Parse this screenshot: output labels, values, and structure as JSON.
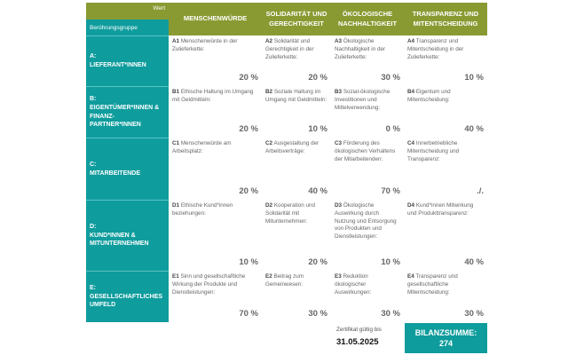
{
  "header": {
    "wert": "Wert",
    "group": "Berührungsgruppe",
    "columns": [
      "MENSCHENWÜRDE",
      "SOLIDARITÄT UND GERECHTIGKEIT",
      "ÖKOLOGISCHE NACHHALTIGKEIT",
      "TRANSPARENZ UND MITENTSCHEIDUNG"
    ]
  },
  "rows": [
    {
      "label_code": "A:",
      "label": "LIEFERANT*INNEN",
      "cells": [
        {
          "code": "A1",
          "text": "Menschenwürde in der Zulieferkette:",
          "value": "20 %"
        },
        {
          "code": "A2",
          "text": "Solidarität und Gerechtigkeit in der Zulieferkette:",
          "value": "20 %"
        },
        {
          "code": "A3",
          "text": "Ökologische Nachhaltigkeit in der Zulieferkette:",
          "value": "30 %"
        },
        {
          "code": "A4",
          "text": "Transparenz und Mitentscheidung in der Zulieferkette:",
          "value": "10 %"
        }
      ]
    },
    {
      "label_code": "B:",
      "label": "EIGENTÜMER*INNEN & FINANZ-PARTNER*INNEN",
      "cells": [
        {
          "code": "B1",
          "text": "Ethische Haltung im Umgang mit Geldmitteln:",
          "value": "20 %"
        },
        {
          "code": "B2",
          "text": "Soziale Haltung im Umgang mit Geldmitteln:",
          "value": "10 %"
        },
        {
          "code": "B3",
          "text": "Sozial-ökologische Investitionen und Mittelverwendung:",
          "value": "0 %"
        },
        {
          "code": "B4",
          "text": "Eigentum und Mitentscheidung:",
          "value": "40 %"
        }
      ]
    },
    {
      "label_code": "C:",
      "label": "MITARBEITENDE",
      "cells": [
        {
          "code": "C1",
          "text": "Menschenwürde am Arbeitsplatz:",
          "value": "20 %"
        },
        {
          "code": "C2",
          "text": "Ausgestaltung der Arbeitsverträge:",
          "value": "40 %"
        },
        {
          "code": "C3",
          "text": "Förderung des ökologischen Verhaltens der Mitarbeitenden:",
          "value": "70 %"
        },
        {
          "code": "C4",
          "text": "Innerbetriebliche Mitentscheidung und Transparenz:",
          "value": "./."
        }
      ]
    },
    {
      "label_code": "D:",
      "label": "KUND*INNEN & MITUNTERNEHMEN",
      "cells": [
        {
          "code": "D1",
          "text": "Ethische Kund*innen beziehungen:",
          "value": "10 %"
        },
        {
          "code": "D2",
          "text": "Kooperation und Solidarität mit Mitunternehmen:",
          "value": "20 %"
        },
        {
          "code": "D3",
          "text": "Ökologische Auswirkung durch Nutzung und Entsorgung von Produkten und Dienstleistungen:",
          "value": "10 %"
        },
        {
          "code": "D4",
          "text": "Kund*innen Mitwirkung und Produkttransparenz:",
          "value": "40 %"
        }
      ]
    },
    {
      "label_code": "E:",
      "label": "GESELLSCHAFTLICHES UMFELD",
      "cells": [
        {
          "code": "E1",
          "text": "Sinn und gesellschaftliche Wirkung der Produkte und Dienstleistungen:",
          "value": "70 %"
        },
        {
          "code": "E2",
          "text": "Beitrag zum Gemeinwesen:",
          "value": "30 %"
        },
        {
          "code": "E3",
          "text": "Reduktion ökologischer Auswirkungen:",
          "value": "30 %"
        },
        {
          "code": "E4",
          "text": "Transparenz und gesellschaftliche Mitentscheidung:",
          "value": "30 %"
        }
      ]
    }
  ],
  "footer": {
    "cert_label": "Zertifikat gültig bis",
    "cert_date": "31.05.2025",
    "sum_label": "BILANZSUMME:",
    "sum_value": "274"
  },
  "colors": {
    "olive": "#8a9a32",
    "teal": "#0f9c9d"
  }
}
